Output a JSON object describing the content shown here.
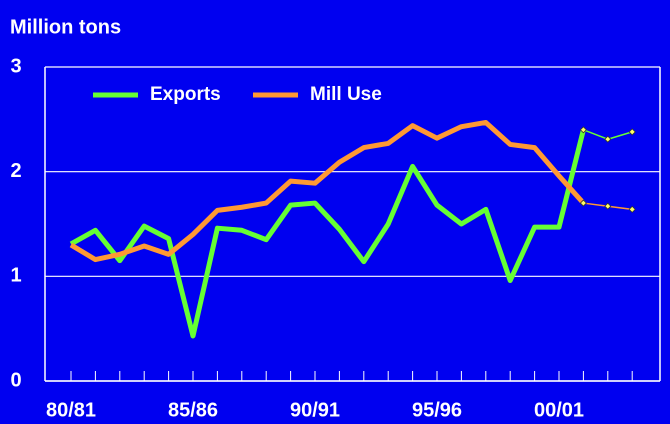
{
  "chart_data": {
    "type": "line",
    "title": "Million tons",
    "categories": [
      "80/81",
      null,
      null,
      null,
      null,
      "85/86",
      null,
      null,
      null,
      null,
      "90/91",
      null,
      null,
      null,
      null,
      "95/96",
      null,
      null,
      null,
      null,
      "00/01",
      null,
      null,
      null
    ],
    "series": [
      {
        "name": "Exports",
        "color": "#66ff33",
        "values": [
          1.31,
          1.44,
          1.15,
          1.48,
          1.36,
          0.43,
          1.46,
          1.44,
          1.35,
          1.68,
          1.7,
          1.45,
          1.14,
          1.5,
          2.05,
          1.68,
          1.5,
          1.64,
          0.96,
          1.47,
          1.47,
          2.4,
          2.31,
          2.38
        ]
      },
      {
        "name": "Mill Use",
        "color": "#ff9933",
        "values": [
          1.3,
          1.16,
          1.21,
          1.29,
          1.21,
          1.4,
          1.63,
          1.66,
          1.7,
          1.91,
          1.89,
          2.09,
          2.23,
          2.27,
          2.44,
          2.32,
          2.43,
          2.47,
          2.26,
          2.23,
          1.96,
          1.7,
          1.67,
          1.64
        ]
      }
    ],
    "ylim": [
      0,
      3
    ],
    "yticks": [
      0,
      1,
      2,
      3
    ],
    "grid": true,
    "legend": "top-left",
    "projection_from": 21
  }
}
